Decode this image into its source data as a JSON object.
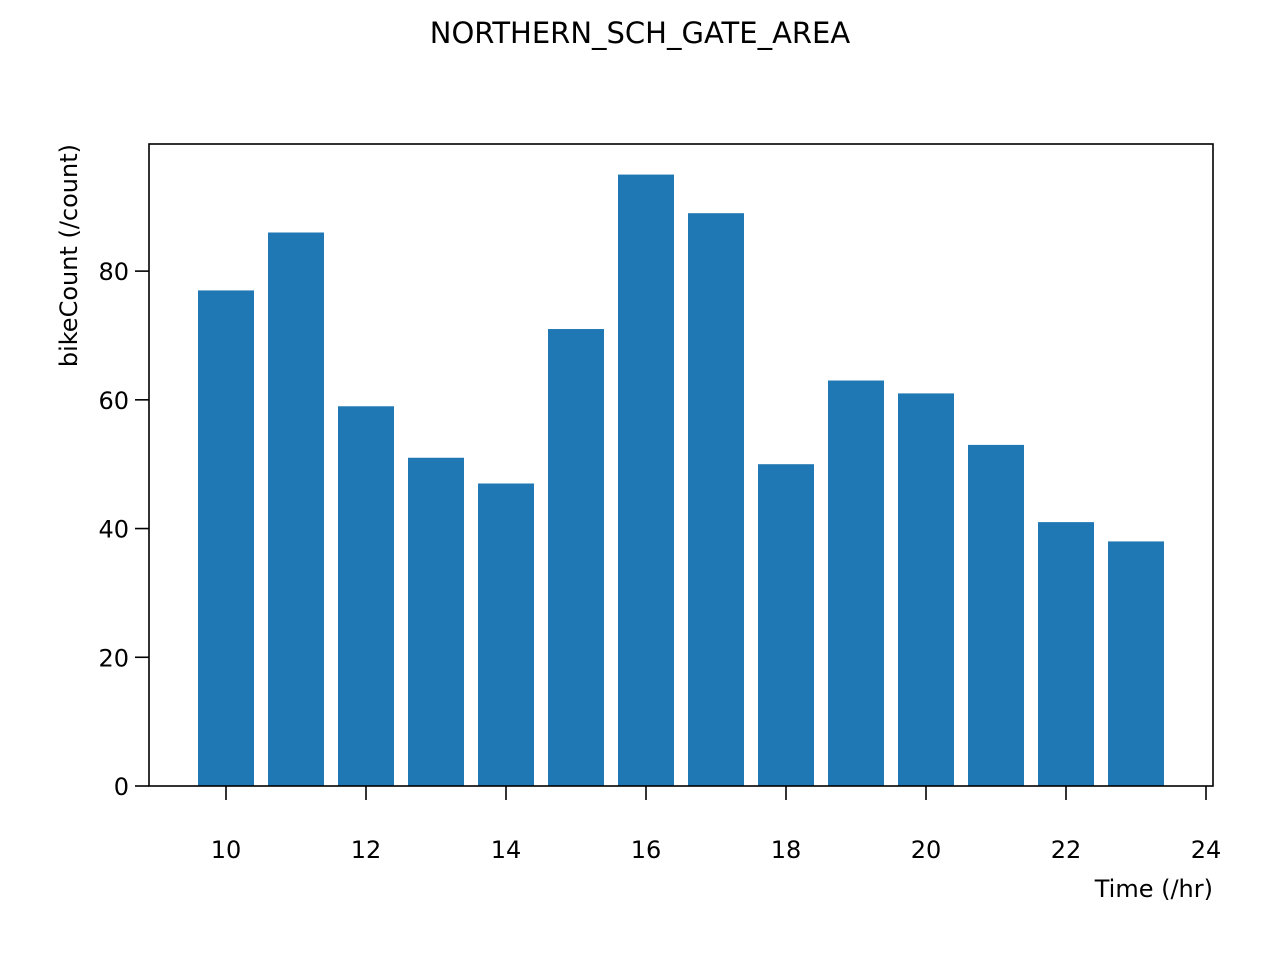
{
  "chart_data": {
    "type": "bar",
    "title": "NORTHERN_SCH_GATE_AREA",
    "xlabel": "Time (/hr)",
    "ylabel": "bikeCount (/count)",
    "x": [
      10,
      11,
      12,
      13,
      14,
      15,
      16,
      17,
      18,
      19,
      20,
      21,
      22,
      23
    ],
    "values": [
      77,
      86,
      59,
      51,
      47,
      71,
      95,
      89,
      50,
      63,
      61,
      53,
      41,
      38
    ],
    "xlim": [
      8.9,
      24.1
    ],
    "ylim": [
      0,
      99.75
    ],
    "xticks": [
      10,
      12,
      14,
      16,
      18,
      20,
      22,
      24
    ],
    "yticks": [
      0,
      20,
      40,
      60,
      80
    ],
    "bar_color": "#1f77b4",
    "grid": false,
    "legend": "none"
  }
}
